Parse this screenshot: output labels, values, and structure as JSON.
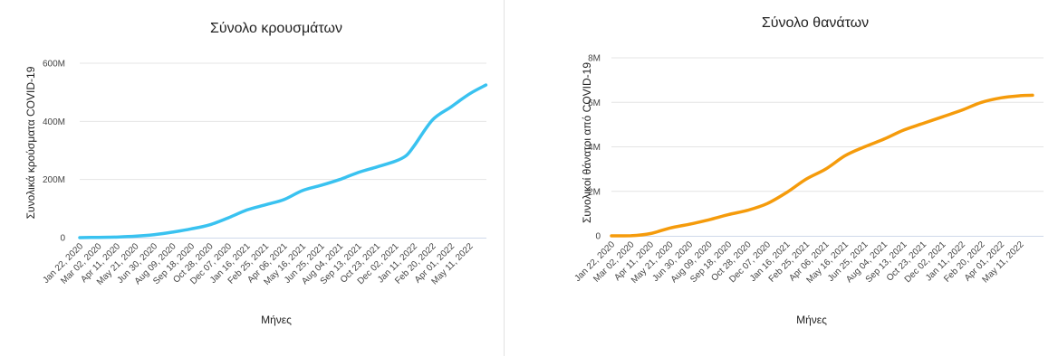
{
  "chart_data": [
    {
      "id": "cases",
      "type": "line",
      "title": "Σύνολο κρουσμάτων",
      "xlabel": "Μήνες",
      "ylabel": "Συνολικά κρούσματα COVID-19",
      "ylim": [
        0,
        600000000
      ],
      "yticks": [
        0,
        200000000,
        400000000,
        600000000
      ],
      "ytick_labels": [
        "0",
        "200M",
        "400M",
        "600M"
      ],
      "grid": true,
      "color": "#39c2f0",
      "x_tick_labels": [
        "Jan 22, 2020",
        "Mar 02, 2020",
        "Apr 11, 2020",
        "May 21, 2020",
        "Jun 30, 2020",
        "Aug 09, 2020",
        "Sep 18, 2020",
        "Oct 28, 2020",
        "Dec 07, 2020",
        "Jan 16, 2021",
        "Feb 25, 2021",
        "Apr 06, 2021",
        "May 16, 2021",
        "Jun 25, 2021",
        "Aug 04, 2021",
        "Sep 13, 2021",
        "Oct 23, 2021",
        "Dec 02, 2021",
        "Jan 11, 2022",
        "Feb 20, 2022",
        "Apr 01, 2022",
        "May 11, 2022"
      ],
      "x": [
        "2020-01-22",
        "2020-03-02",
        "2020-04-11",
        "2020-05-21",
        "2020-06-30",
        "2020-08-09",
        "2020-09-18",
        "2020-10-28",
        "2020-12-07",
        "2021-01-16",
        "2021-02-25",
        "2021-04-06",
        "2021-05-16",
        "2021-06-25",
        "2021-08-04",
        "2021-09-13",
        "2021-10-23",
        "2021-12-02",
        "2021-12-25",
        "2022-01-11",
        "2022-02-20",
        "2022-04-01",
        "2022-05-11",
        "2022-06-15"
      ],
      "values": [
        0,
        1000000,
        2000000,
        5000000,
        10000000,
        19000000,
        30000000,
        44000000,
        68000000,
        95000000,
        113000000,
        131000000,
        162000000,
        180000000,
        200000000,
        224000000,
        243000000,
        263000000,
        282000000,
        315000000,
        405000000,
        450000000,
        495000000,
        525000000
      ]
    },
    {
      "id": "deaths",
      "type": "line",
      "title": "Σύνολο θανάτων",
      "xlabel": "Μήνες",
      "ylabel": "Συνολικοί θάνατοι από COVID-19",
      "ylim": [
        0,
        8000000
      ],
      "yticks": [
        0,
        2000000,
        4000000,
        6000000,
        8000000
      ],
      "ytick_labels": [
        "0",
        "2M",
        "4M",
        "6M",
        "8M"
      ],
      "grid": true,
      "color": "#f59b0b",
      "x_tick_labels": [
        "Jan 22, 2020",
        "Mar 02, 2020",
        "Apr 11, 2020",
        "May 21, 2020",
        "Jun 30, 2020",
        "Aug 09, 2020",
        "Sep 18, 2020",
        "Oct 28, 2020",
        "Dec 07, 2020",
        "Jan 16, 2021",
        "Feb 25, 2021",
        "Apr 06, 2021",
        "May 16, 2021",
        "Jun 25, 2021",
        "Aug 04, 2021",
        "Sep 13, 2021",
        "Oct 23, 2021",
        "Dec 02, 2021",
        "Jan 11, 2022",
        "Feb 20, 2022",
        "Apr 01, 2022",
        "May 11, 2022"
      ],
      "x": [
        "2020-01-22",
        "2020-03-02",
        "2020-04-11",
        "2020-05-21",
        "2020-06-30",
        "2020-08-09",
        "2020-09-18",
        "2020-10-28",
        "2020-12-07",
        "2021-01-16",
        "2021-02-25",
        "2021-04-06",
        "2021-05-16",
        "2021-06-25",
        "2021-08-04",
        "2021-09-13",
        "2021-10-23",
        "2021-12-02",
        "2022-01-11",
        "2022-02-20",
        "2022-04-01",
        "2022-05-11",
        "2022-06-05"
      ],
      "values": [
        0,
        3000,
        100000,
        350000,
        520000,
        720000,
        950000,
        1150000,
        1450000,
        1950000,
        2550000,
        3000000,
        3600000,
        4000000,
        4350000,
        4750000,
        5050000,
        5350000,
        5650000,
        6000000,
        6200000,
        6300000,
        6320000
      ]
    }
  ]
}
